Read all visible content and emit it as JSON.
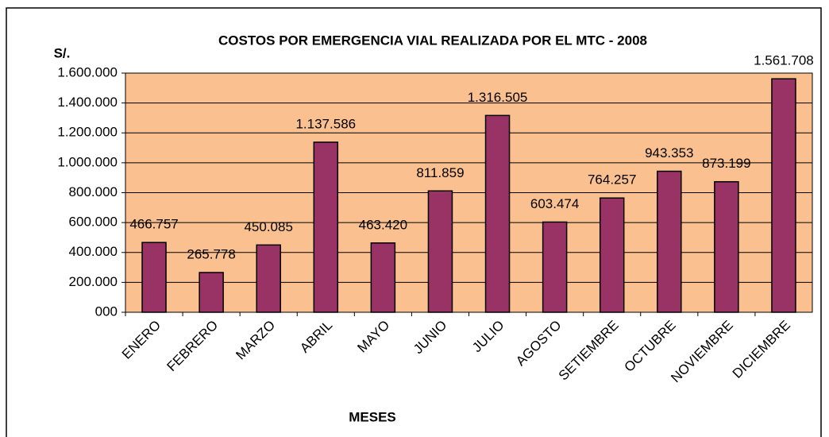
{
  "chart_data": {
    "type": "bar",
    "title": "COSTOS POR EMERGENCIA VIAL REALIZADA POR EL MTC - 2008",
    "y_label": "S/.",
    "x_label": "MESES",
    "categories": [
      "ENERO",
      "FEBRERO",
      "MARZO",
      "ABRIL",
      "MAYO",
      "JUNIO",
      "JULIO",
      "AGOSTO",
      "SETIEMBRE",
      "OCTUBRE",
      "NOVIEMBRE",
      "DICIEMBRE"
    ],
    "values": [
      466757,
      265778,
      450085,
      1137586,
      463420,
      811859,
      1316505,
      603474,
      764257,
      943353,
      873199,
      1561708
    ],
    "value_labels": [
      "466.757",
      "265.778",
      "450.085",
      "1.137.586",
      "463.420",
      "811.859",
      "1.316.505",
      "603.474",
      "764.257",
      "943.353",
      "873.199",
      "1.561.708"
    ],
    "color": "#993366",
    "plot_background": "#fac090",
    "ylim": [
      0,
      1600000
    ],
    "yticks": [
      {
        "value": 0,
        "label": "000"
      },
      {
        "value": 200000,
        "label": "200.000"
      },
      {
        "value": 400000,
        "label": "400.000"
      },
      {
        "value": 600000,
        "label": "600.000"
      },
      {
        "value": 800000,
        "label": "800.000"
      },
      {
        "value": 1000000,
        "label": "1.000.000"
      },
      {
        "value": 1200000,
        "label": "1.200.000"
      },
      {
        "value": 1400000,
        "label": "1.400.000"
      },
      {
        "value": 1600000,
        "label": "1.600.000"
      }
    ],
    "grid": true
  }
}
